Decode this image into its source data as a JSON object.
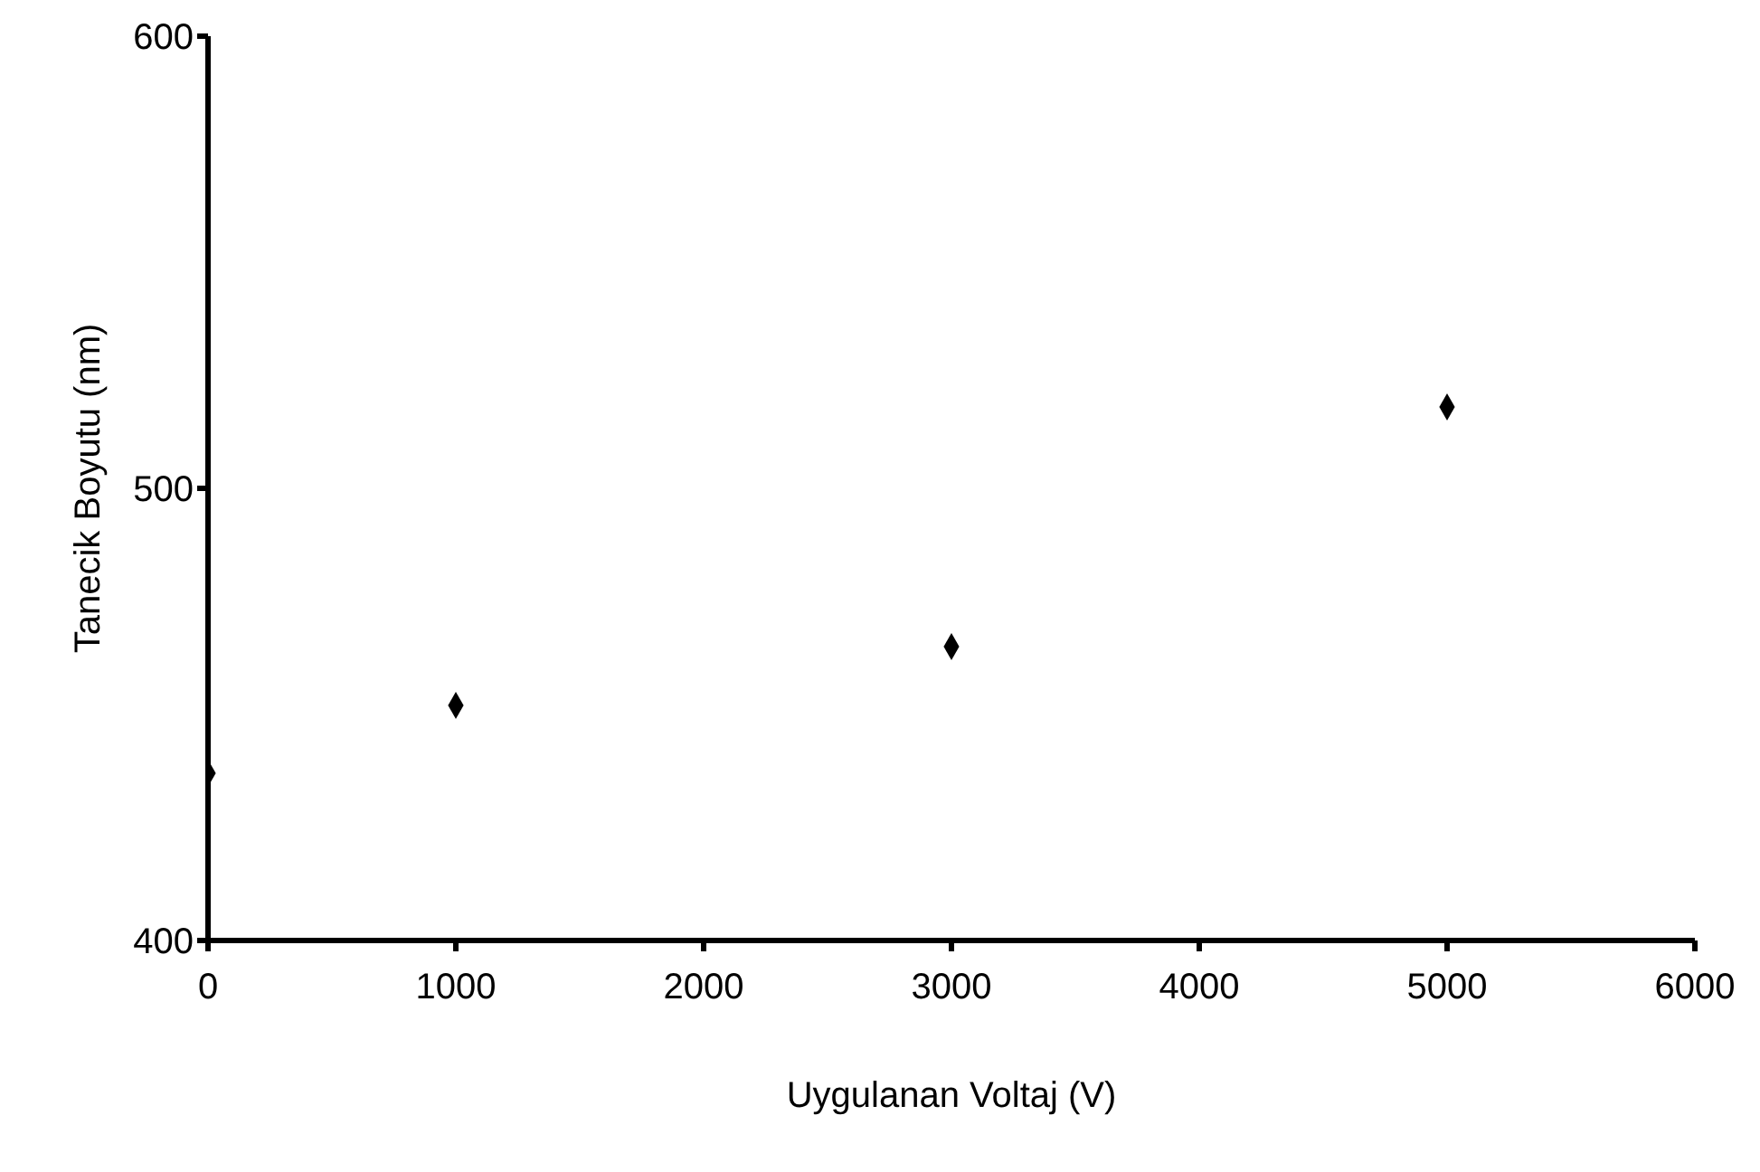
{
  "chart_data": {
    "type": "scatter",
    "xlabel": "Uygulanan Voltaj (V)",
    "ylabel": "Tanecik Boyutu (nm)",
    "x": [
      0,
      1000,
      3000,
      5000
    ],
    "values": [
      437,
      452,
      465,
      518
    ],
    "color": "#000000",
    "marker": "diamond",
    "xlim": [
      0,
      6000
    ],
    "xticks": [
      0,
      1000,
      2000,
      3000,
      4000,
      5000,
      6000
    ],
    "ylim": [
      400,
      600
    ],
    "yticks": [
      400,
      500,
      600
    ],
    "grid": false,
    "legend": false
  }
}
